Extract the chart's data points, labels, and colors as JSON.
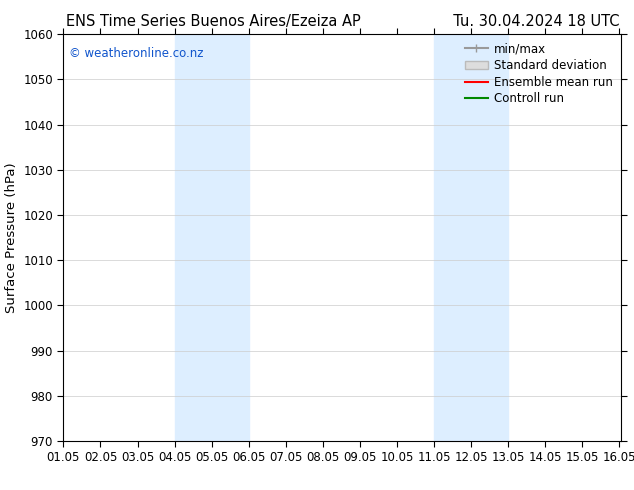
{
  "title_left": "ENS Time Series Buenos Aires/Ezeiza AP",
  "title_right": "Tu. 30.04.2024 18 UTC",
  "ylabel": "Surface Pressure (hPa)",
  "xlim": [
    1.0,
    16.05
  ],
  "ylim": [
    970,
    1060
  ],
  "yticks": [
    970,
    980,
    990,
    1000,
    1010,
    1020,
    1030,
    1040,
    1050,
    1060
  ],
  "xtick_labels": [
    "01.05",
    "02.05",
    "03.05",
    "04.05",
    "05.05",
    "06.05",
    "07.05",
    "08.05",
    "09.05",
    "10.05",
    "11.05",
    "12.05",
    "13.05",
    "14.05",
    "15.05",
    "16.05"
  ],
  "xtick_positions": [
    1.0,
    2.0,
    3.0,
    4.0,
    5.0,
    6.0,
    7.0,
    8.0,
    9.0,
    10.0,
    11.0,
    12.0,
    13.0,
    14.0,
    15.0,
    16.0
  ],
  "shaded_regions": [
    {
      "xmin": 4.0,
      "xmax": 6.0,
      "color": "#ddeeff"
    },
    {
      "xmin": 11.0,
      "xmax": 13.0,
      "color": "#ddeeff"
    }
  ],
  "watermark": "© weatheronline.co.nz",
  "watermark_color": "#1155cc",
  "bg_color": "#ffffff",
  "grid_color": "#cccccc",
  "title_fontsize": 10.5,
  "tick_fontsize": 8.5,
  "ylabel_fontsize": 9.5,
  "legend_fontsize": 8.5,
  "legend_entries": [
    {
      "label": "min/max",
      "color": "#999999",
      "linestyle": "-",
      "linewidth": 1.5
    },
    {
      "label": "Standard deviation",
      "color": "#cccccc",
      "linestyle": "-",
      "linewidth": 6
    },
    {
      "label": "Ensemble mean run",
      "color": "#ff0000",
      "linestyle": "-",
      "linewidth": 1.5
    },
    {
      "label": "Controll run",
      "color": "#008800",
      "linestyle": "-",
      "linewidth": 1.5
    }
  ]
}
